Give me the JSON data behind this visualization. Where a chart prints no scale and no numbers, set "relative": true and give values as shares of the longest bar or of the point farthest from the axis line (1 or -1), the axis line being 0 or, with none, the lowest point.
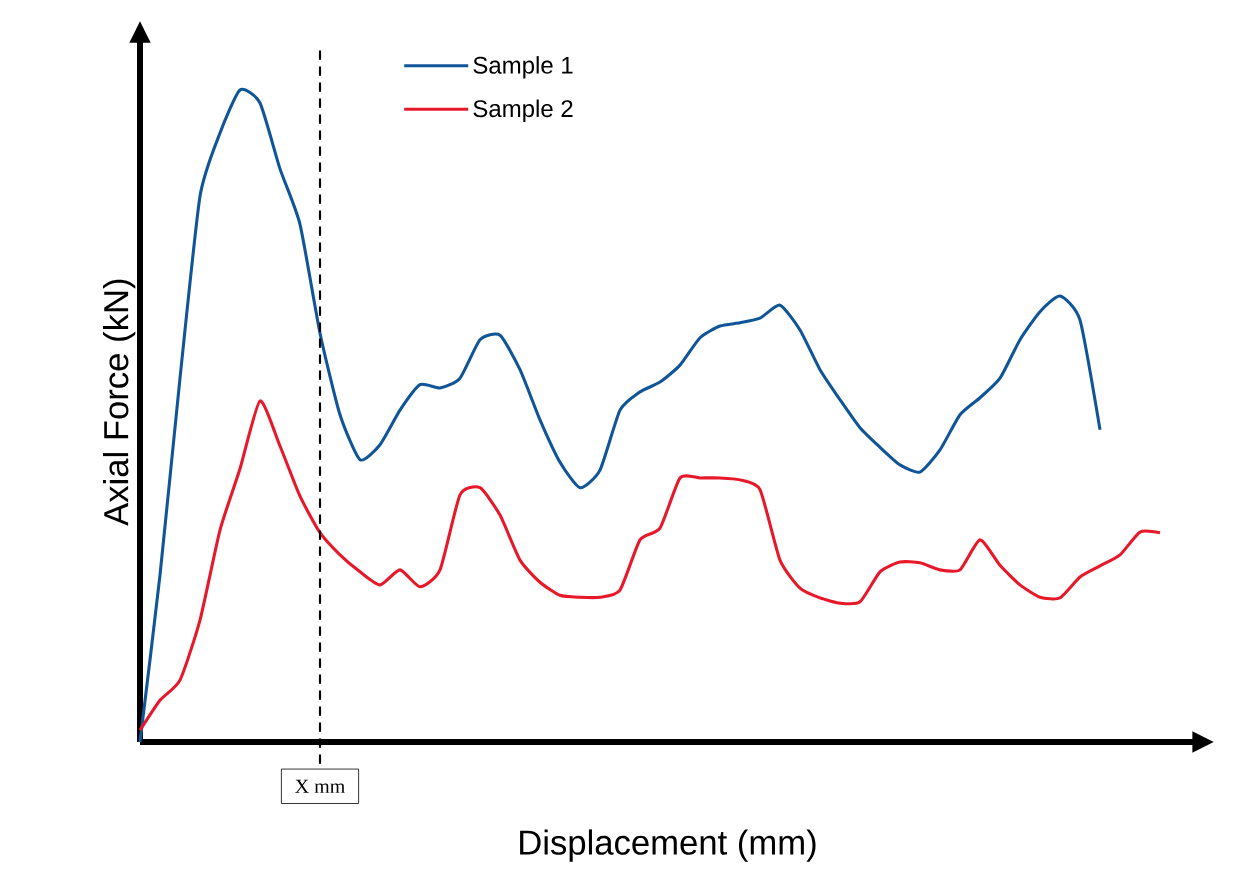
{
  "chart_data": {
    "type": "line",
    "relative": true,
    "xlabel": "Displacement (mm)",
    "ylabel": "Axial Force (kN)",
    "categories": [
      null,
      null,
      null,
      null,
      null,
      null,
      null,
      null,
      null,
      null,
      null,
      null,
      null,
      null,
      null,
      null,
      null,
      null,
      null,
      null,
      null,
      null,
      null,
      null,
      null,
      null,
      null,
      null,
      null,
      null,
      null,
      null,
      null,
      null,
      null,
      null,
      null,
      null,
      null,
      null,
      null,
      null,
      null,
      null,
      null,
      null,
      null,
      null,
      null,
      null,
      null,
      null
    ],
    "series": [
      {
        "name": "Sample 1",
        "color": "#0f5597",
        "values": [
          0,
          0.256,
          0.558,
          0.837,
          0.934,
          1.0,
          0.98,
          0.879,
          0.794,
          0.627,
          0.502,
          0.433,
          0.456,
          0.509,
          0.548,
          0.543,
          0.558,
          0.617,
          0.624,
          0.571,
          0.494,
          0.429,
          0.39,
          0.417,
          0.509,
          0.537,
          0.552,
          0.578,
          0.62,
          0.638,
          0.643,
          0.65,
          0.67,
          0.632,
          0.571,
          0.525,
          0.482,
          0.452,
          0.425,
          0.414,
          0.448,
          0.502,
          0.528,
          0.558,
          0.617,
          0.66,
          0.684,
          0.647,
          0.479,
          null,
          null,
          null
        ]
      },
      {
        "name": "Sample 2",
        "color": "#e8182b",
        "values": [
          0.018,
          0.064,
          0.095,
          0.187,
          0.325,
          0.419,
          0.523,
          0.454,
          0.377,
          0.321,
          0.287,
          0.261,
          0.241,
          0.264,
          0.238,
          0.264,
          0.379,
          0.39,
          0.348,
          0.279,
          0.245,
          0.225,
          0.222,
          0.222,
          0.233,
          0.31,
          0.328,
          0.405,
          0.405,
          0.405,
          0.402,
          0.387,
          0.279,
          0.236,
          0.221,
          0.213,
          0.215,
          0.261,
          0.276,
          0.275,
          0.264,
          0.264,
          0.31,
          0.271,
          0.241,
          0.222,
          0.221,
          0.253,
          0.27,
          0.287,
          0.322,
          0.321
        ]
      }
    ],
    "annotations": [
      "X mm"
    ],
    "legend": "top",
    "grid": false,
    "marker": "none",
    "line_style": "solid"
  }
}
